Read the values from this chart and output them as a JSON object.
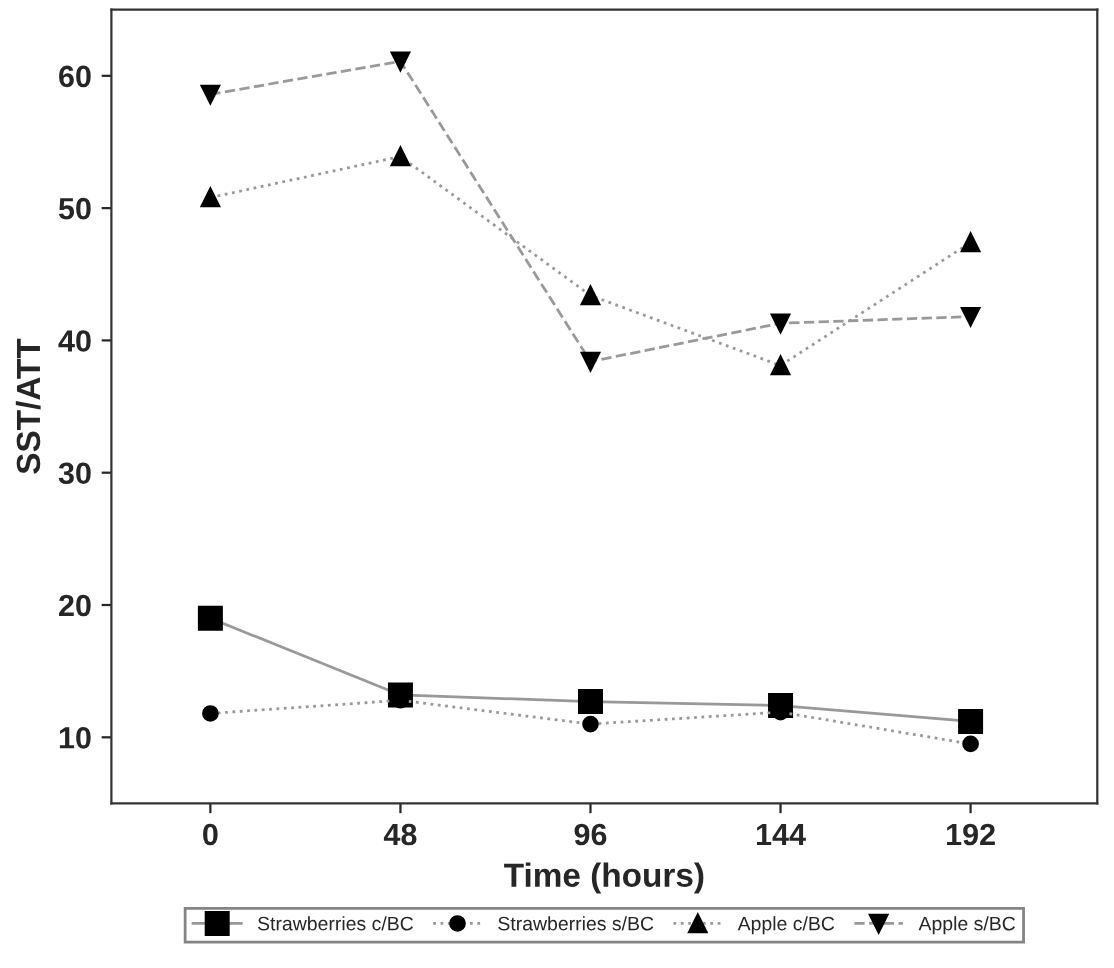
{
  "chart_data": {
    "type": "line",
    "xlabel": "Time (hours)",
    "ylabel": "SST/ATT",
    "x": [
      0,
      48,
      96,
      144,
      192
    ],
    "xlim": [
      -25,
      224
    ],
    "xticks": [
      0,
      48,
      96,
      144,
      192
    ],
    "ylim": [
      5,
      65
    ],
    "yticks": [
      10,
      20,
      30,
      40,
      50,
      60
    ],
    "grid": false,
    "legend": "bottom",
    "series": [
      {
        "name": "Strawberries c/BC",
        "color": "#000000",
        "marker": "square",
        "line_style": "solid",
        "values": [
          19.0,
          13.2,
          12.7,
          12.4,
          11.2
        ]
      },
      {
        "name": "Strawberries s/BC",
        "color": "#000000",
        "marker": "circle",
        "line_style": "dotted",
        "values": [
          11.8,
          12.8,
          11.0,
          11.9,
          9.5
        ]
      },
      {
        "name": "Apple c/BC",
        "color": "#000000",
        "marker": "triangle",
        "line_style": "dotted",
        "values": [
          50.8,
          53.9,
          43.4,
          38.1,
          47.4
        ]
      },
      {
        "name": "Apple s/BC",
        "color": "#000000",
        "marker": "triangle_down",
        "line_style": "dashed",
        "values": [
          58.6,
          61.1,
          38.4,
          41.3,
          41.8
        ]
      }
    ]
  }
}
